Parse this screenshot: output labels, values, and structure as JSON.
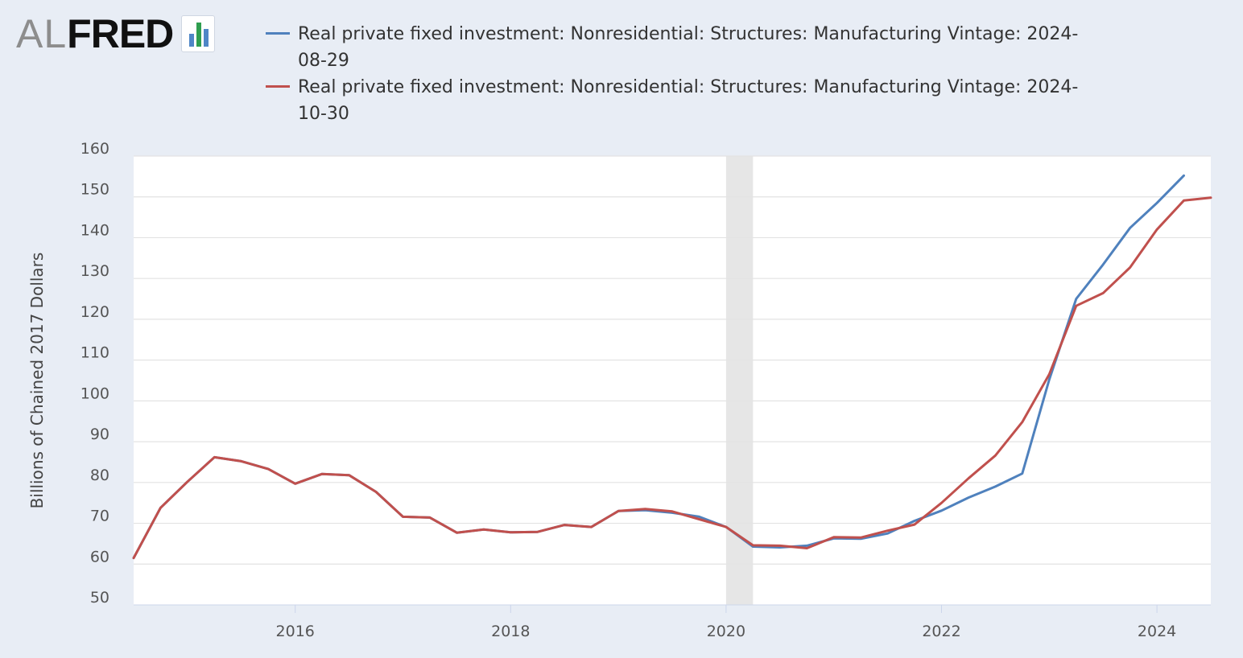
{
  "logo": {
    "prefix": "AL",
    "main": "FRED",
    "mark_icon": "fred-bar-chart-icon"
  },
  "chart_data": {
    "type": "line",
    "title": "",
    "xlabel": "",
    "ylabel": "Billions of Chained 2017 Dollars",
    "ylim": [
      50,
      160
    ],
    "y_ticks": [
      50,
      60,
      70,
      80,
      90,
      100,
      110,
      120,
      130,
      140,
      150,
      160
    ],
    "x_range": [
      2014.5,
      2024.5
    ],
    "x_ticks": [
      2016,
      2018,
      2020,
      2022,
      2024
    ],
    "grid": "horizontal",
    "recession_shading": [
      [
        2020.0,
        2020.25
      ]
    ],
    "series": [
      {
        "name": "Real private fixed investment: Nonresidential: Structures: Manufacturing Vintage: 2024-08-29",
        "color": "#4f81bd",
        "x": [
          2014.5,
          2014.75,
          2015.0,
          2015.25,
          2015.5,
          2015.75,
          2016.0,
          2016.25,
          2016.5,
          2016.75,
          2017.0,
          2017.25,
          2017.5,
          2017.75,
          2018.0,
          2018.25,
          2018.5,
          2018.75,
          2019.0,
          2019.25,
          2019.5,
          2019.75,
          2020.0,
          2020.25,
          2020.5,
          2020.75,
          2021.0,
          2021.25,
          2021.5,
          2021.75,
          2022.0,
          2022.25,
          2022.5,
          2022.75,
          2023.0,
          2023.25,
          2023.5,
          2023.75,
          2024.0,
          2024.25
        ],
        "values": [
          61.5,
          73.8,
          80.2,
          86.2,
          85.2,
          83.3,
          79.7,
          82.1,
          81.8,
          77.7,
          71.6,
          71.4,
          67.7,
          68.5,
          67.8,
          67.9,
          69.6,
          69.1,
          73.0,
          73.2,
          72.6,
          71.6,
          69.1,
          64.3,
          64.1,
          64.5,
          66.3,
          66.2,
          67.5,
          70.6,
          73.1,
          76.3,
          79.0,
          82.2,
          105.2,
          125.0,
          133.4,
          142.4,
          148.5,
          155.2
        ]
      },
      {
        "name": "Real private fixed investment: Nonresidential: Structures: Manufacturing Vintage: 2024-10-30",
        "color": "#c0504d",
        "x": [
          2014.5,
          2014.75,
          2015.0,
          2015.25,
          2015.5,
          2015.75,
          2016.0,
          2016.25,
          2016.5,
          2016.75,
          2017.0,
          2017.25,
          2017.5,
          2017.75,
          2018.0,
          2018.25,
          2018.5,
          2018.75,
          2019.0,
          2019.25,
          2019.5,
          2019.75,
          2020.0,
          2020.25,
          2020.5,
          2020.75,
          2021.0,
          2021.25,
          2021.5,
          2021.75,
          2022.0,
          2022.25,
          2022.5,
          2022.75,
          2023.0,
          2023.25,
          2023.5,
          2023.75,
          2024.0,
          2024.25,
          2024.5
        ],
        "values": [
          61.5,
          73.8,
          80.2,
          86.2,
          85.2,
          83.3,
          79.7,
          82.1,
          81.8,
          77.7,
          71.6,
          71.4,
          67.7,
          68.5,
          67.8,
          67.9,
          69.6,
          69.1,
          73.0,
          73.5,
          72.9,
          71.0,
          69.1,
          64.6,
          64.5,
          63.9,
          66.6,
          66.5,
          68.2,
          69.7,
          75.0,
          81.0,
          86.6,
          94.8,
          106.5,
          123.3,
          126.4,
          132.7,
          142.0,
          149.1,
          149.8
        ]
      }
    ]
  }
}
